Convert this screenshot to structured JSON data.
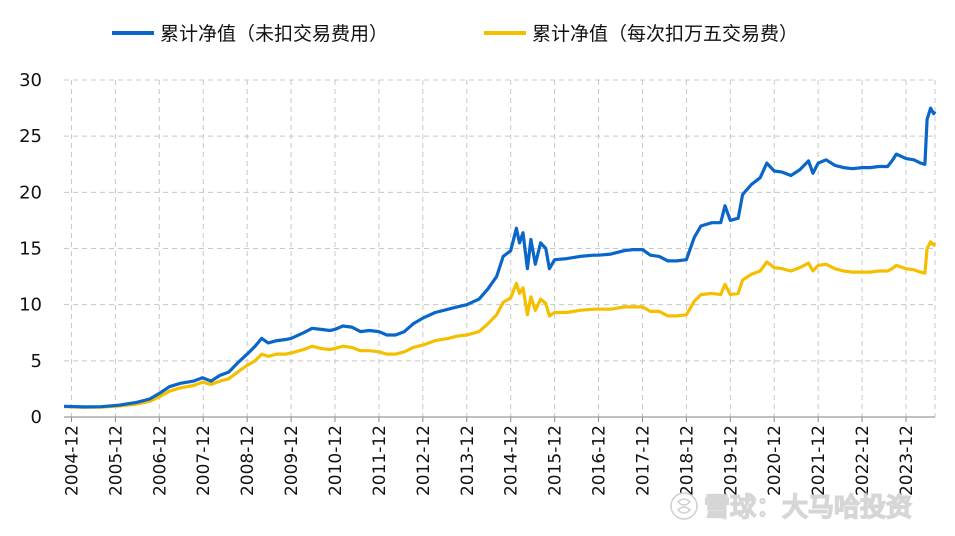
{
  "chart_data": {
    "type": "line",
    "xlim": [
      2004.75,
      2024.58
    ],
    "ylim": [
      0,
      30
    ],
    "yticks": [
      "0",
      "5",
      "10",
      "15",
      "20",
      "25",
      "30"
    ],
    "xticks": [
      {
        "label": "2004-12",
        "x": 2004.92
      },
      {
        "label": "2005-12",
        "x": 2005.92
      },
      {
        "label": "2006-12",
        "x": 2006.92
      },
      {
        "label": "2007-12",
        "x": 2007.92
      },
      {
        "label": "2008-12",
        "x": 2008.92
      },
      {
        "label": "2009-12",
        "x": 2009.92
      },
      {
        "label": "2010-12",
        "x": 2010.92
      },
      {
        "label": "2011-12",
        "x": 2011.92
      },
      {
        "label": "2012-12",
        "x": 2012.92
      },
      {
        "label": "2013-12",
        "x": 2013.92
      },
      {
        "label": "2014-12",
        "x": 2014.92
      },
      {
        "label": "2015-12",
        "x": 2015.92
      },
      {
        "label": "2016-12",
        "x": 2016.92
      },
      {
        "label": "2017-12",
        "x": 2017.92
      },
      {
        "label": "2018-12",
        "x": 2018.92
      },
      {
        "label": "2019-12",
        "x": 2019.92
      },
      {
        "label": "2020-12",
        "x": 2020.92
      },
      {
        "label": "2021-12",
        "x": 2021.92
      },
      {
        "label": "2022-12",
        "x": 2022.92
      },
      {
        "label": "2023-12",
        "x": 2023.92
      }
    ],
    "grid": true,
    "legend_position": "top",
    "series": [
      {
        "name": "累计净值（未扣交易费用）",
        "color": "#0a66c8",
        "points": [
          [
            2004.75,
            0.95
          ],
          [
            2005.2,
            0.9
          ],
          [
            2005.6,
            0.92
          ],
          [
            2006.0,
            1.05
          ],
          [
            2006.4,
            1.3
          ],
          [
            2006.7,
            1.6
          ],
          [
            2006.92,
            2.1
          ],
          [
            2007.15,
            2.7
          ],
          [
            2007.4,
            3.0
          ],
          [
            2007.7,
            3.2
          ],
          [
            2007.9,
            3.5
          ],
          [
            2008.1,
            3.2
          ],
          [
            2008.3,
            3.7
          ],
          [
            2008.5,
            4.0
          ],
          [
            2008.7,
            4.8
          ],
          [
            2008.92,
            5.6
          ],
          [
            2009.1,
            6.3
          ],
          [
            2009.25,
            7.0
          ],
          [
            2009.4,
            6.6
          ],
          [
            2009.6,
            6.8
          ],
          [
            2009.8,
            6.9
          ],
          [
            2009.92,
            7.0
          ],
          [
            2010.2,
            7.5
          ],
          [
            2010.4,
            7.9
          ],
          [
            2010.6,
            7.8
          ],
          [
            2010.8,
            7.7
          ],
          [
            2010.92,
            7.8
          ],
          [
            2011.1,
            8.1
          ],
          [
            2011.3,
            8.0
          ],
          [
            2011.5,
            7.6
          ],
          [
            2011.7,
            7.7
          ],
          [
            2011.92,
            7.6
          ],
          [
            2012.1,
            7.3
          ],
          [
            2012.3,
            7.3
          ],
          [
            2012.5,
            7.6
          ],
          [
            2012.7,
            8.3
          ],
          [
            2012.92,
            8.8
          ],
          [
            2013.2,
            9.3
          ],
          [
            2013.5,
            9.6
          ],
          [
            2013.7,
            9.8
          ],
          [
            2013.92,
            10.0
          ],
          [
            2014.2,
            10.5
          ],
          [
            2014.4,
            11.4
          ],
          [
            2014.6,
            12.5
          ],
          [
            2014.75,
            14.3
          ],
          [
            2014.92,
            14.8
          ],
          [
            2015.05,
            16.8
          ],
          [
            2015.12,
            15.5
          ],
          [
            2015.2,
            16.4
          ],
          [
            2015.3,
            13.2
          ],
          [
            2015.38,
            15.8
          ],
          [
            2015.48,
            13.6
          ],
          [
            2015.6,
            15.5
          ],
          [
            2015.72,
            15.0
          ],
          [
            2015.8,
            13.2
          ],
          [
            2015.92,
            14.0
          ],
          [
            2016.2,
            14.1
          ],
          [
            2016.5,
            14.3
          ],
          [
            2016.8,
            14.4
          ],
          [
            2016.92,
            14.4
          ],
          [
            2017.2,
            14.5
          ],
          [
            2017.5,
            14.8
          ],
          [
            2017.7,
            14.9
          ],
          [
            2017.92,
            14.9
          ],
          [
            2018.1,
            14.4
          ],
          [
            2018.3,
            14.3
          ],
          [
            2018.5,
            13.9
          ],
          [
            2018.7,
            13.9
          ],
          [
            2018.92,
            14.0
          ],
          [
            2019.1,
            16.0
          ],
          [
            2019.25,
            17.0
          ],
          [
            2019.5,
            17.3
          ],
          [
            2019.7,
            17.3
          ],
          [
            2019.8,
            18.8
          ],
          [
            2019.92,
            17.5
          ],
          [
            2020.1,
            17.7
          ],
          [
            2020.2,
            19.8
          ],
          [
            2020.4,
            20.7
          ],
          [
            2020.6,
            21.3
          ],
          [
            2020.75,
            22.6
          ],
          [
            2020.92,
            21.9
          ],
          [
            2021.1,
            21.8
          ],
          [
            2021.3,
            21.5
          ],
          [
            2021.5,
            22.0
          ],
          [
            2021.6,
            22.4
          ],
          [
            2021.7,
            22.8
          ],
          [
            2021.8,
            21.7
          ],
          [
            2021.92,
            22.6
          ],
          [
            2022.1,
            22.9
          ],
          [
            2022.3,
            22.4
          ],
          [
            2022.5,
            22.2
          ],
          [
            2022.7,
            22.1
          ],
          [
            2022.92,
            22.2
          ],
          [
            2023.1,
            22.2
          ],
          [
            2023.3,
            22.3
          ],
          [
            2023.5,
            22.3
          ],
          [
            2023.6,
            22.8
          ],
          [
            2023.7,
            23.4
          ],
          [
            2023.92,
            23.0
          ],
          [
            2024.1,
            22.9
          ],
          [
            2024.25,
            22.6
          ],
          [
            2024.35,
            22.5
          ],
          [
            2024.4,
            26.5
          ],
          [
            2024.48,
            27.5
          ],
          [
            2024.55,
            27.0
          ],
          [
            2024.58,
            27.2
          ]
        ]
      },
      {
        "name": "累计净值（每次扣万五交易费）",
        "color": "#f5bf00",
        "points": [
          [
            2004.75,
            0.92
          ],
          [
            2005.2,
            0.86
          ],
          [
            2005.6,
            0.88
          ],
          [
            2006.0,
            0.98
          ],
          [
            2006.4,
            1.15
          ],
          [
            2006.7,
            1.4
          ],
          [
            2006.92,
            1.8
          ],
          [
            2007.15,
            2.3
          ],
          [
            2007.4,
            2.6
          ],
          [
            2007.7,
            2.8
          ],
          [
            2007.9,
            3.1
          ],
          [
            2008.1,
            2.9
          ],
          [
            2008.3,
            3.2
          ],
          [
            2008.5,
            3.4
          ],
          [
            2008.7,
            4.0
          ],
          [
            2008.92,
            4.6
          ],
          [
            2009.1,
            5.0
          ],
          [
            2009.25,
            5.6
          ],
          [
            2009.4,
            5.4
          ],
          [
            2009.6,
            5.6
          ],
          [
            2009.8,
            5.6
          ],
          [
            2009.92,
            5.7
          ],
          [
            2010.2,
            6.0
          ],
          [
            2010.4,
            6.3
          ],
          [
            2010.6,
            6.1
          ],
          [
            2010.8,
            6.0
          ],
          [
            2010.92,
            6.1
          ],
          [
            2011.1,
            6.3
          ],
          [
            2011.3,
            6.2
          ],
          [
            2011.5,
            5.9
          ],
          [
            2011.7,
            5.9
          ],
          [
            2011.92,
            5.8
          ],
          [
            2012.1,
            5.6
          ],
          [
            2012.3,
            5.6
          ],
          [
            2012.5,
            5.8
          ],
          [
            2012.7,
            6.2
          ],
          [
            2012.92,
            6.4
          ],
          [
            2013.2,
            6.8
          ],
          [
            2013.5,
            7.0
          ],
          [
            2013.7,
            7.2
          ],
          [
            2013.92,
            7.3
          ],
          [
            2014.2,
            7.6
          ],
          [
            2014.4,
            8.3
          ],
          [
            2014.6,
            9.1
          ],
          [
            2014.75,
            10.2
          ],
          [
            2014.92,
            10.6
          ],
          [
            2015.05,
            11.9
          ],
          [
            2015.12,
            11.0
          ],
          [
            2015.2,
            11.5
          ],
          [
            2015.3,
            9.1
          ],
          [
            2015.38,
            10.7
          ],
          [
            2015.48,
            9.5
          ],
          [
            2015.6,
            10.5
          ],
          [
            2015.72,
            10.1
          ],
          [
            2015.8,
            9.0
          ],
          [
            2015.92,
            9.3
          ],
          [
            2016.2,
            9.3
          ],
          [
            2016.5,
            9.5
          ],
          [
            2016.8,
            9.6
          ],
          [
            2016.92,
            9.6
          ],
          [
            2017.2,
            9.6
          ],
          [
            2017.5,
            9.8
          ],
          [
            2017.7,
            9.8
          ],
          [
            2017.92,
            9.8
          ],
          [
            2018.1,
            9.4
          ],
          [
            2018.3,
            9.4
          ],
          [
            2018.5,
            9.0
          ],
          [
            2018.7,
            9.0
          ],
          [
            2018.92,
            9.1
          ],
          [
            2019.1,
            10.3
          ],
          [
            2019.25,
            10.9
          ],
          [
            2019.5,
            11.0
          ],
          [
            2019.7,
            10.9
          ],
          [
            2019.8,
            11.8
          ],
          [
            2019.92,
            10.9
          ],
          [
            2020.1,
            11.0
          ],
          [
            2020.2,
            12.2
          ],
          [
            2020.4,
            12.7
          ],
          [
            2020.6,
            13.0
          ],
          [
            2020.75,
            13.8
          ],
          [
            2020.92,
            13.3
          ],
          [
            2021.1,
            13.2
          ],
          [
            2021.3,
            13.0
          ],
          [
            2021.5,
            13.3
          ],
          [
            2021.6,
            13.5
          ],
          [
            2021.7,
            13.7
          ],
          [
            2021.8,
            13.0
          ],
          [
            2021.92,
            13.5
          ],
          [
            2022.1,
            13.6
          ],
          [
            2022.3,
            13.2
          ],
          [
            2022.5,
            13.0
          ],
          [
            2022.7,
            12.9
          ],
          [
            2022.92,
            12.9
          ],
          [
            2023.1,
            12.9
          ],
          [
            2023.3,
            13.0
          ],
          [
            2023.5,
            13.0
          ],
          [
            2023.6,
            13.2
          ],
          [
            2023.7,
            13.5
          ],
          [
            2023.92,
            13.2
          ],
          [
            2024.1,
            13.1
          ],
          [
            2024.25,
            12.9
          ],
          [
            2024.35,
            12.8
          ],
          [
            2024.4,
            15.0
          ],
          [
            2024.48,
            15.6
          ],
          [
            2024.55,
            15.3
          ],
          [
            2024.58,
            15.5
          ]
        ]
      }
    ]
  },
  "watermark": {
    "text": "雪球：大马哈投资",
    "icon": "snowball-logo-icon"
  }
}
